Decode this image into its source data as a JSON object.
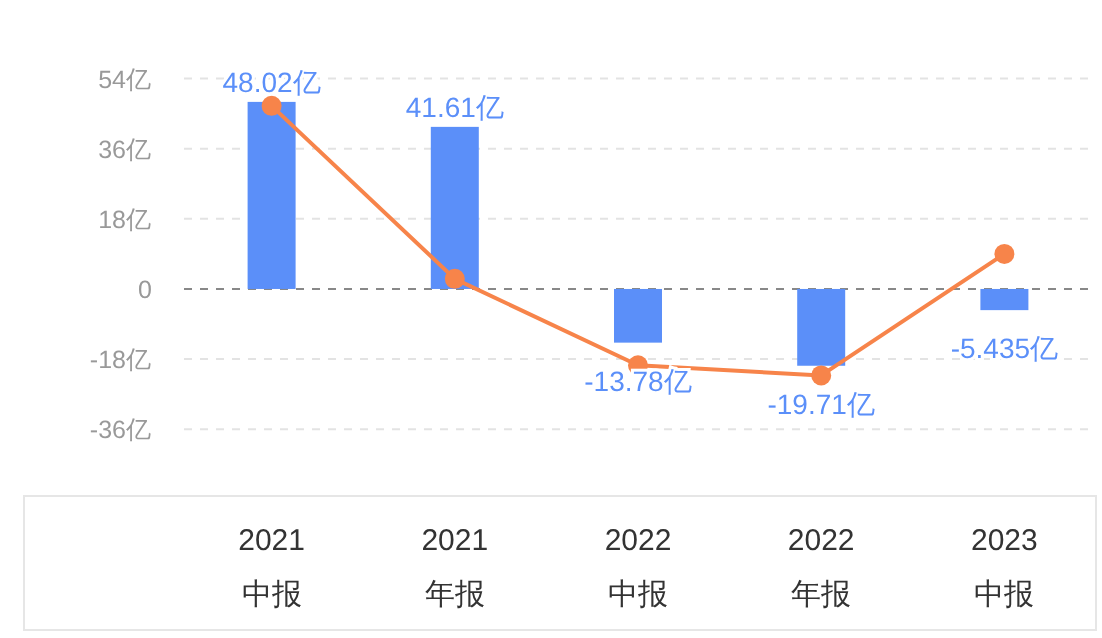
{
  "chart_data": {
    "type": "bar",
    "categories": [
      "2021\n中报",
      "2021\n年报",
      "2022\n中报",
      "2022\n年报",
      "2023\n中报"
    ],
    "series": [
      {
        "color": "#5b8ff9",
        "values": [
          48.02,
          41.61,
          -13.78,
          -19.71,
          -5.435
        ],
        "value_labels": [
          "48.02亿",
          "41.61亿",
          "-13.78亿",
          "-19.71亿",
          "-5.435亿"
        ]
      },
      {
        "type": "line",
        "color": "#f7844a",
        "values": [
          47.0,
          2.6,
          -19.6,
          -22.2,
          9.0
        ],
        "marker": "circle"
      }
    ],
    "ylim": [
      -36,
      54
    ],
    "yticks": [
      {
        "value": -36,
        "label": "-36亿"
      },
      {
        "value": -18,
        "label": "-18亿"
      },
      0,
      {
        "value": 18,
        "label": "18亿"
      },
      {
        "value": 36,
        "label": "36亿"
      },
      {
        "value": 54,
        "label": "54亿"
      }
    ],
    "ref_lines": [
      {
        "axis": "y",
        "value": 0,
        "color": "#888888",
        "line_style": "dashed"
      }
    ],
    "grid": "y"
  }
}
